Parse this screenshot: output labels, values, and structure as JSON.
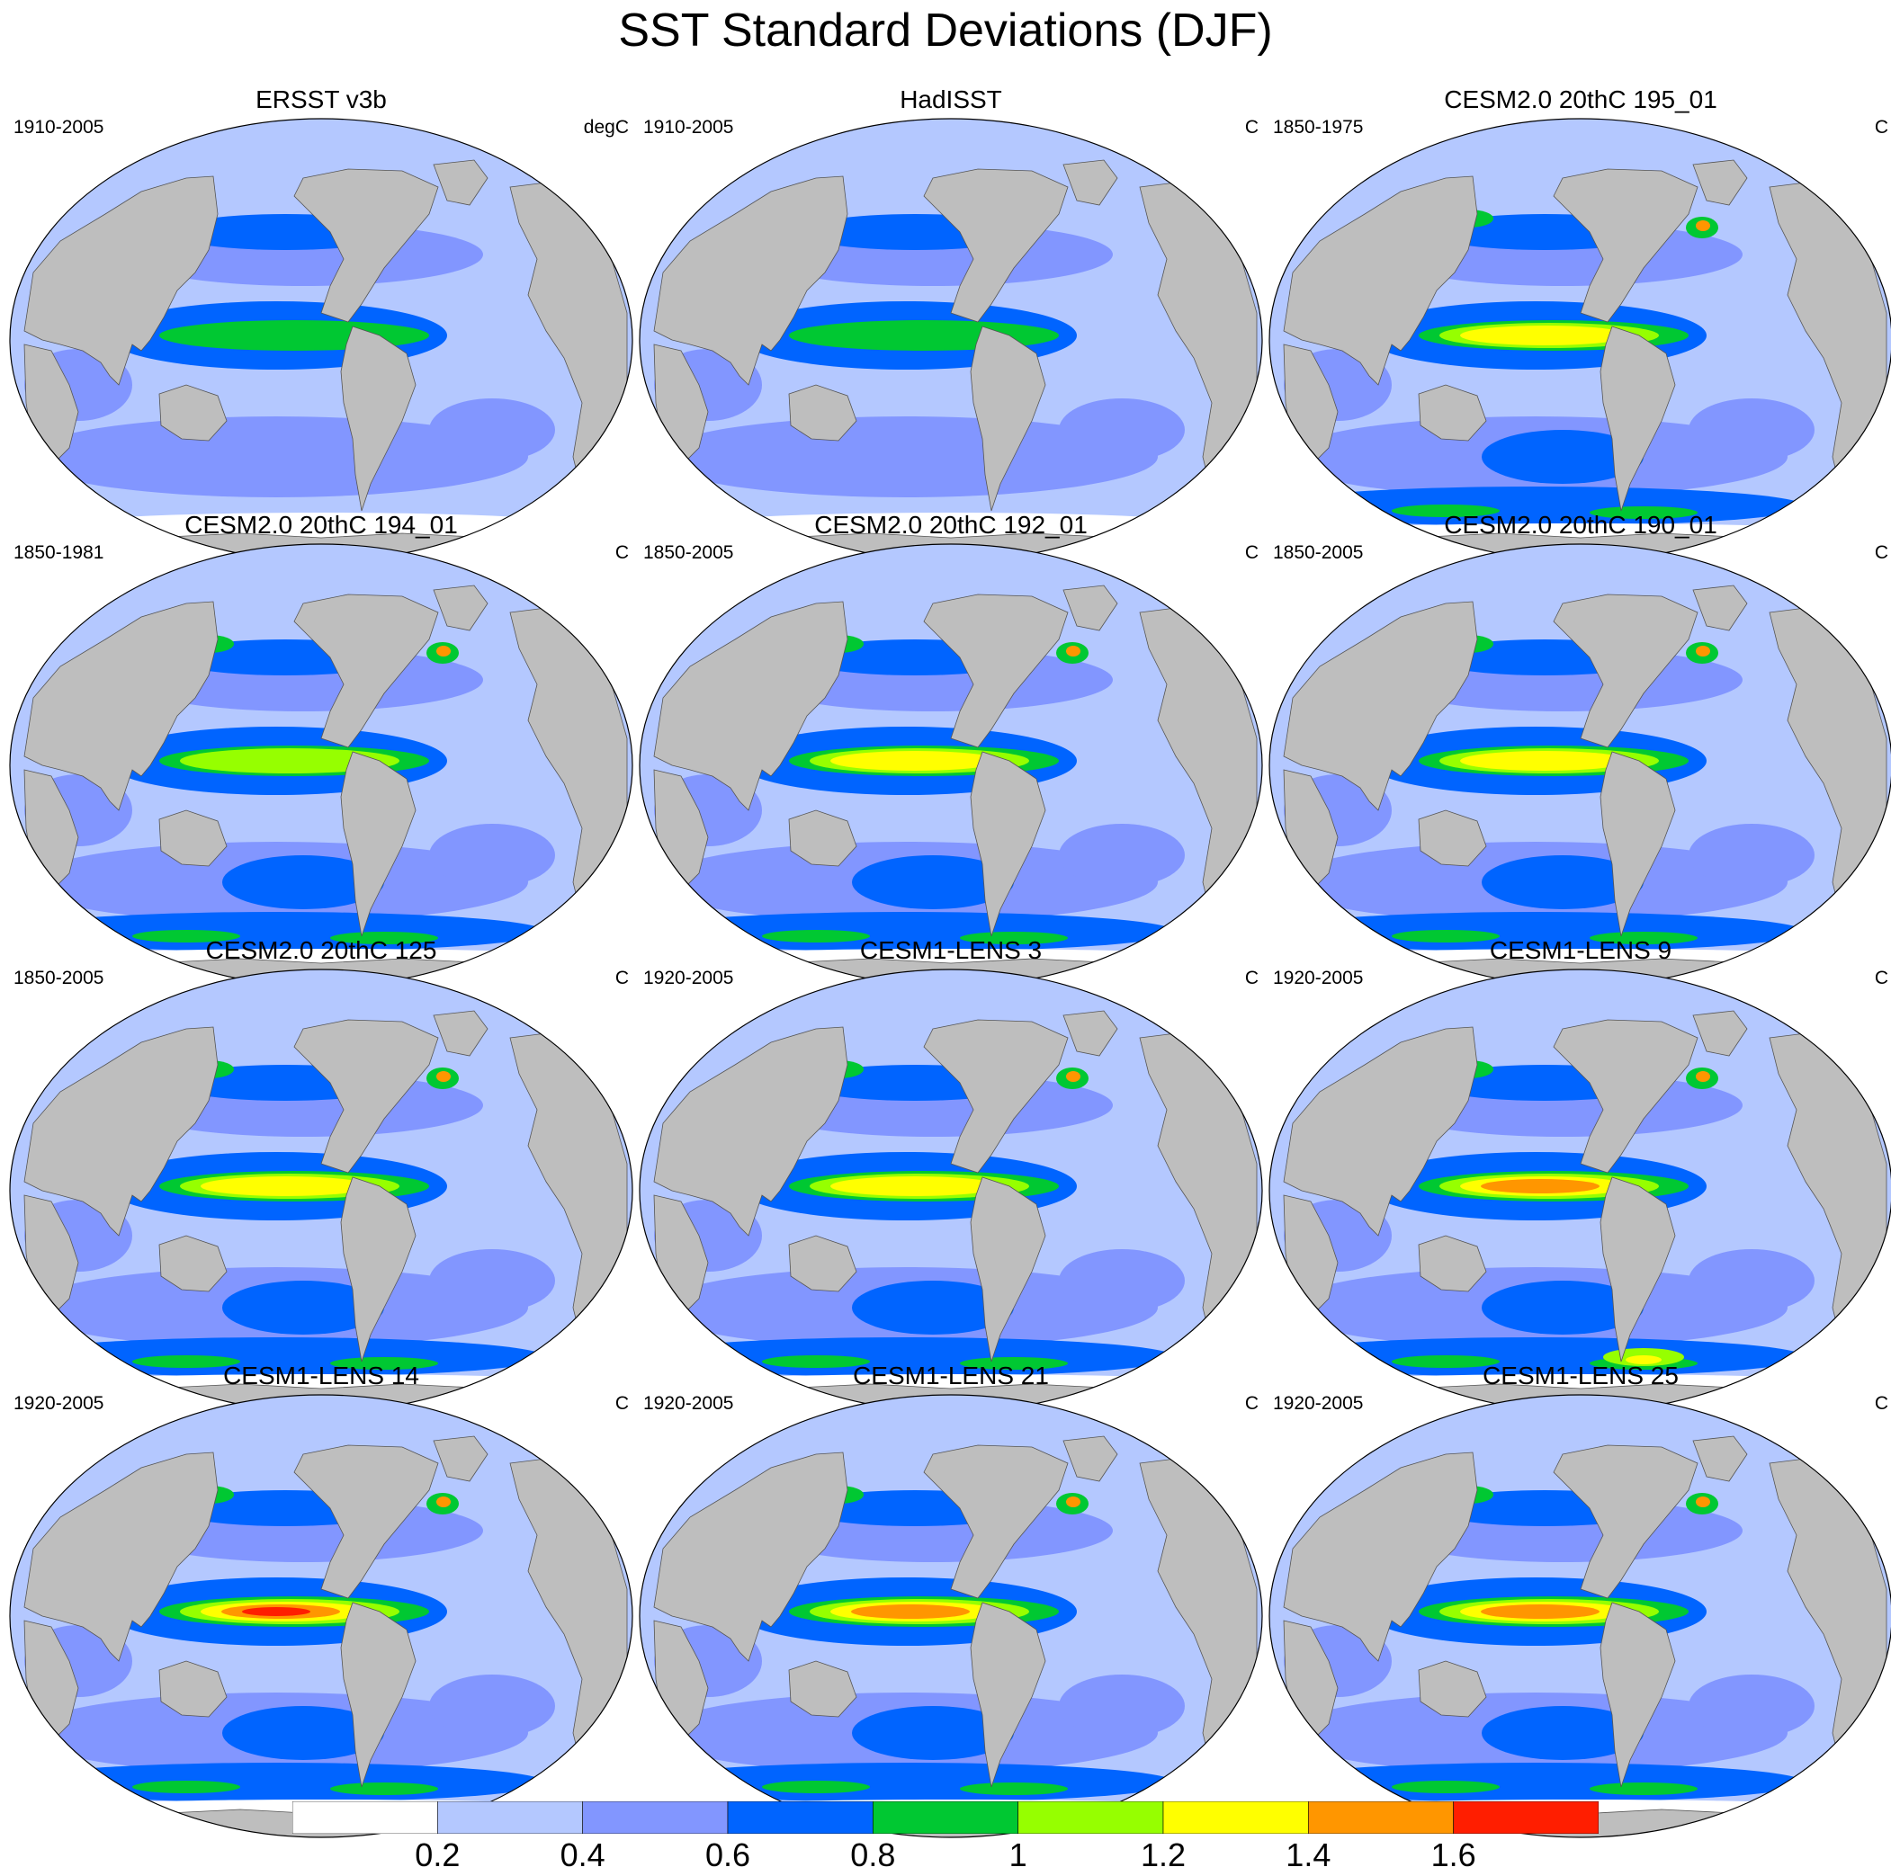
{
  "title": "SST Standard Deviations (DJF)",
  "panels": [
    {
      "title": "ERSST v3b",
      "period": "1910-2005",
      "units": "degC",
      "enso": 1,
      "north": 0,
      "south": 0,
      "whiteSouth": 1
    },
    {
      "title": "HadISST",
      "period": "1910-2005",
      "units": "C",
      "enso": 1,
      "north": 0,
      "south": 0,
      "whiteSouth": 1
    },
    {
      "title": "CESM2.0 20thC 195_01",
      "period": "1850-1975",
      "units": "C",
      "enso": 3,
      "north": 2,
      "south": 2,
      "whiteSouth": 0
    },
    {
      "title": "CESM2.0 20thC 194_01",
      "period": "1850-1981",
      "units": "C",
      "enso": 2,
      "north": 2,
      "south": 2,
      "whiteSouth": 0
    },
    {
      "title": "CESM2.0 20thC 192_01",
      "period": "1850-2005",
      "units": "C",
      "enso": 3,
      "north": 2,
      "south": 2,
      "whiteSouth": 0
    },
    {
      "title": "CESM2.0 20thC 190_01",
      "period": "1850-2005",
      "units": "C",
      "enso": 3,
      "north": 2,
      "south": 2,
      "whiteSouth": 0
    },
    {
      "title": "CESM2.0 20thC 125",
      "period": "1850-2005",
      "units": "C",
      "enso": 3,
      "north": 2,
      "south": 2,
      "whiteSouth": 0
    },
    {
      "title": "CESM1-LENS 3",
      "period": "1920-2005",
      "units": "C",
      "enso": 3,
      "north": 2,
      "south": 2,
      "whiteSouth": 0
    },
    {
      "title": "CESM1-LENS 9",
      "period": "1920-2005",
      "units": "C",
      "enso": 4,
      "north": 2,
      "south": 3,
      "whiteSouth": 0
    },
    {
      "title": "CESM1-LENS 14",
      "period": "1920-2005",
      "units": "C",
      "enso": 5,
      "north": 2,
      "south": 2,
      "whiteSouth": 0
    },
    {
      "title": "CESM1-LENS 21",
      "period": "1920-2005",
      "units": "C",
      "enso": 4,
      "north": 2,
      "south": 2,
      "whiteSouth": 0
    },
    {
      "title": "CESM1-LENS 25",
      "period": "1920-2005",
      "units": "C",
      "enso": 4,
      "north": 2,
      "south": 2,
      "whiteSouth": 0
    }
  ],
  "colorbar": {
    "colors": [
      "#ffffff",
      "#b4c8ff",
      "#8296ff",
      "#0064ff",
      "#00c832",
      "#96ff00",
      "#ffff00",
      "#ff9600",
      "#ff1e00"
    ],
    "labels": [
      "0.2",
      "0.4",
      "0.6",
      "0.8",
      "1",
      "1.2",
      "1.4",
      "1.6"
    ],
    "min": 0,
    "max": 1.8
  },
  "land_color": "#bebebe"
}
